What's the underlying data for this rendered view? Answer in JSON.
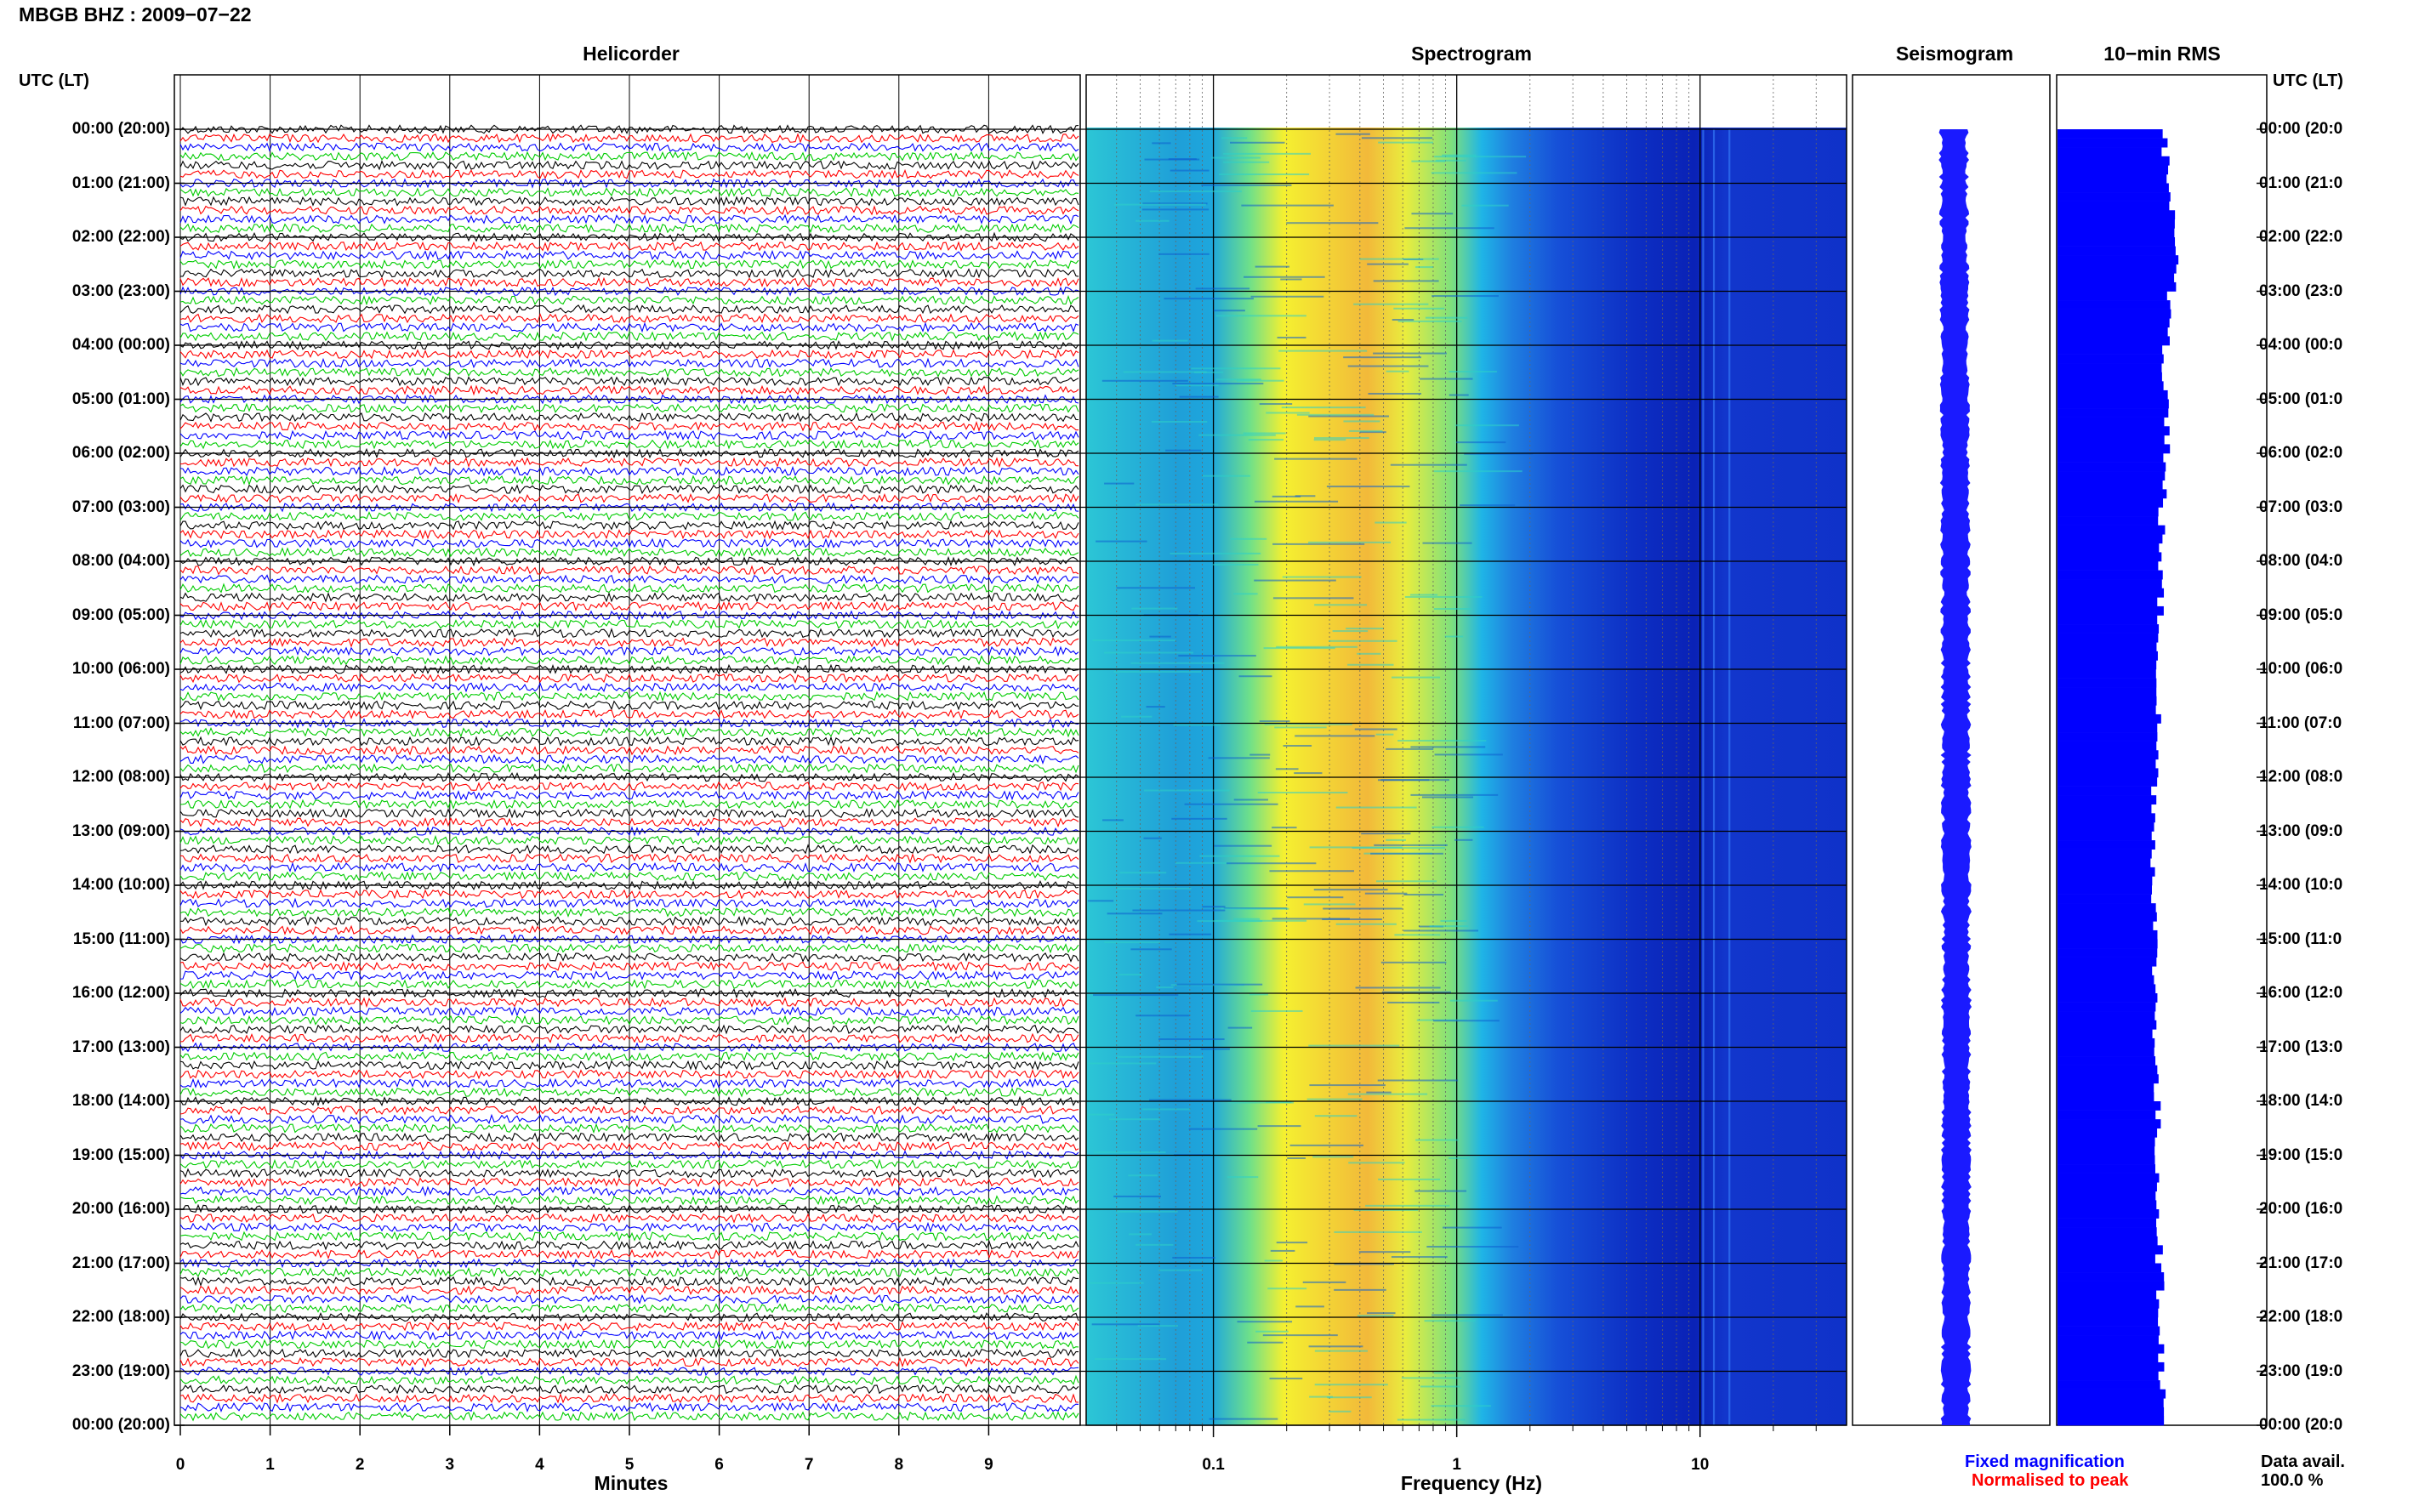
{
  "title": "MBGB BHZ : 2009−07−22",
  "panels": {
    "helicorder": "Helicorder",
    "spectrogram": "Spectrogram",
    "seismogram": "Seismogram",
    "rms": "10−min RMS"
  },
  "axis_left_label": "UTC (LT)",
  "axis_right_label": "UTC (LT)",
  "hour_labels": [
    "00:00 (20:00)",
    "01:00 (21:00)",
    "02:00 (22:00)",
    "03:00 (23:00)",
    "04:00 (00:00)",
    "05:00 (01:00)",
    "06:00 (02:00)",
    "07:00 (03:00)",
    "08:00 (04:00)",
    "09:00 (05:00)",
    "10:00 (06:00)",
    "11:00 (07:00)",
    "12:00 (08:00)",
    "13:00 (09:00)",
    "14:00 (10:00)",
    "15:00 (11:00)",
    "16:00 (12:00)",
    "17:00 (13:00)",
    "18:00 (14:00)",
    "19:00 (15:00)",
    "20:00 (16:00)",
    "21:00 (17:00)",
    "22:00 (18:00)",
    "23:00 (19:00)",
    "00:00 (20:00)"
  ],
  "hour_labels_right": [
    "00:00 (20:0",
    "01:00 (21:0",
    "02:00 (22:0",
    "03:00 (23:0",
    "04:00 (00:0",
    "05:00 (01:0",
    "06:00 (02:0",
    "07:00 (03:0",
    "08:00 (04:0",
    "09:00 (05:0",
    "10:00 (06:0",
    "11:00 (07:0",
    "12:00 (08:0",
    "13:00 (09:0",
    "14:00 (10:0",
    "15:00 (11:0",
    "16:00 (12:0",
    "17:00 (13:0",
    "18:00 (14:0",
    "19:00 (15:0",
    "20:00 (16:0",
    "21:00 (17:0",
    "22:00 (18:0",
    "23:00 (19:0",
    "00:00 (20:0"
  ],
  "helicorder_x": {
    "label": "Minutes",
    "ticks": [
      "0",
      "1",
      "2",
      "3",
      "4",
      "5",
      "6",
      "7",
      "8",
      "9"
    ],
    "range": [
      0,
      10
    ]
  },
  "spectrogram_x": {
    "label": "Frequency (Hz)",
    "ticks": [
      "0.1",
      "1",
      "10"
    ],
    "scale": "log",
    "range": [
      0.03,
      40
    ]
  },
  "legend": {
    "fixed": "Fixed magnification",
    "normalised": "Normalised to peak",
    "fixed_color": "#0000ff",
    "normalised_color": "#ff0000"
  },
  "availability": {
    "label": "Data avail.",
    "value": "100.0 %"
  },
  "colors": {
    "trace_cycle": [
      "#000000",
      "#ff0000",
      "#0000ff",
      "#00cc00"
    ],
    "seis": "#1a1aff",
    "rms": "#0000ff"
  },
  "chart_data": {
    "type": "heatmap",
    "title": "MBGB BHZ : 2009−07−22",
    "panels": [
      "Helicorder",
      "Spectrogram",
      "Seismogram",
      "10−min RMS"
    ],
    "hours": 24,
    "lines_per_hour": 6,
    "spectrogram_peak_hz": 0.35,
    "rms_relative_per_hour": [
      1.0,
      1.05,
      1.08,
      1.04,
      1.0,
      1.02,
      0.98,
      0.96,
      0.95,
      0.94,
      0.93,
      0.92,
      0.9,
      0.89,
      0.9,
      0.9,
      0.91,
      0.91,
      0.92,
      0.93,
      0.94,
      0.95,
      0.96,
      0.97
    ]
  }
}
